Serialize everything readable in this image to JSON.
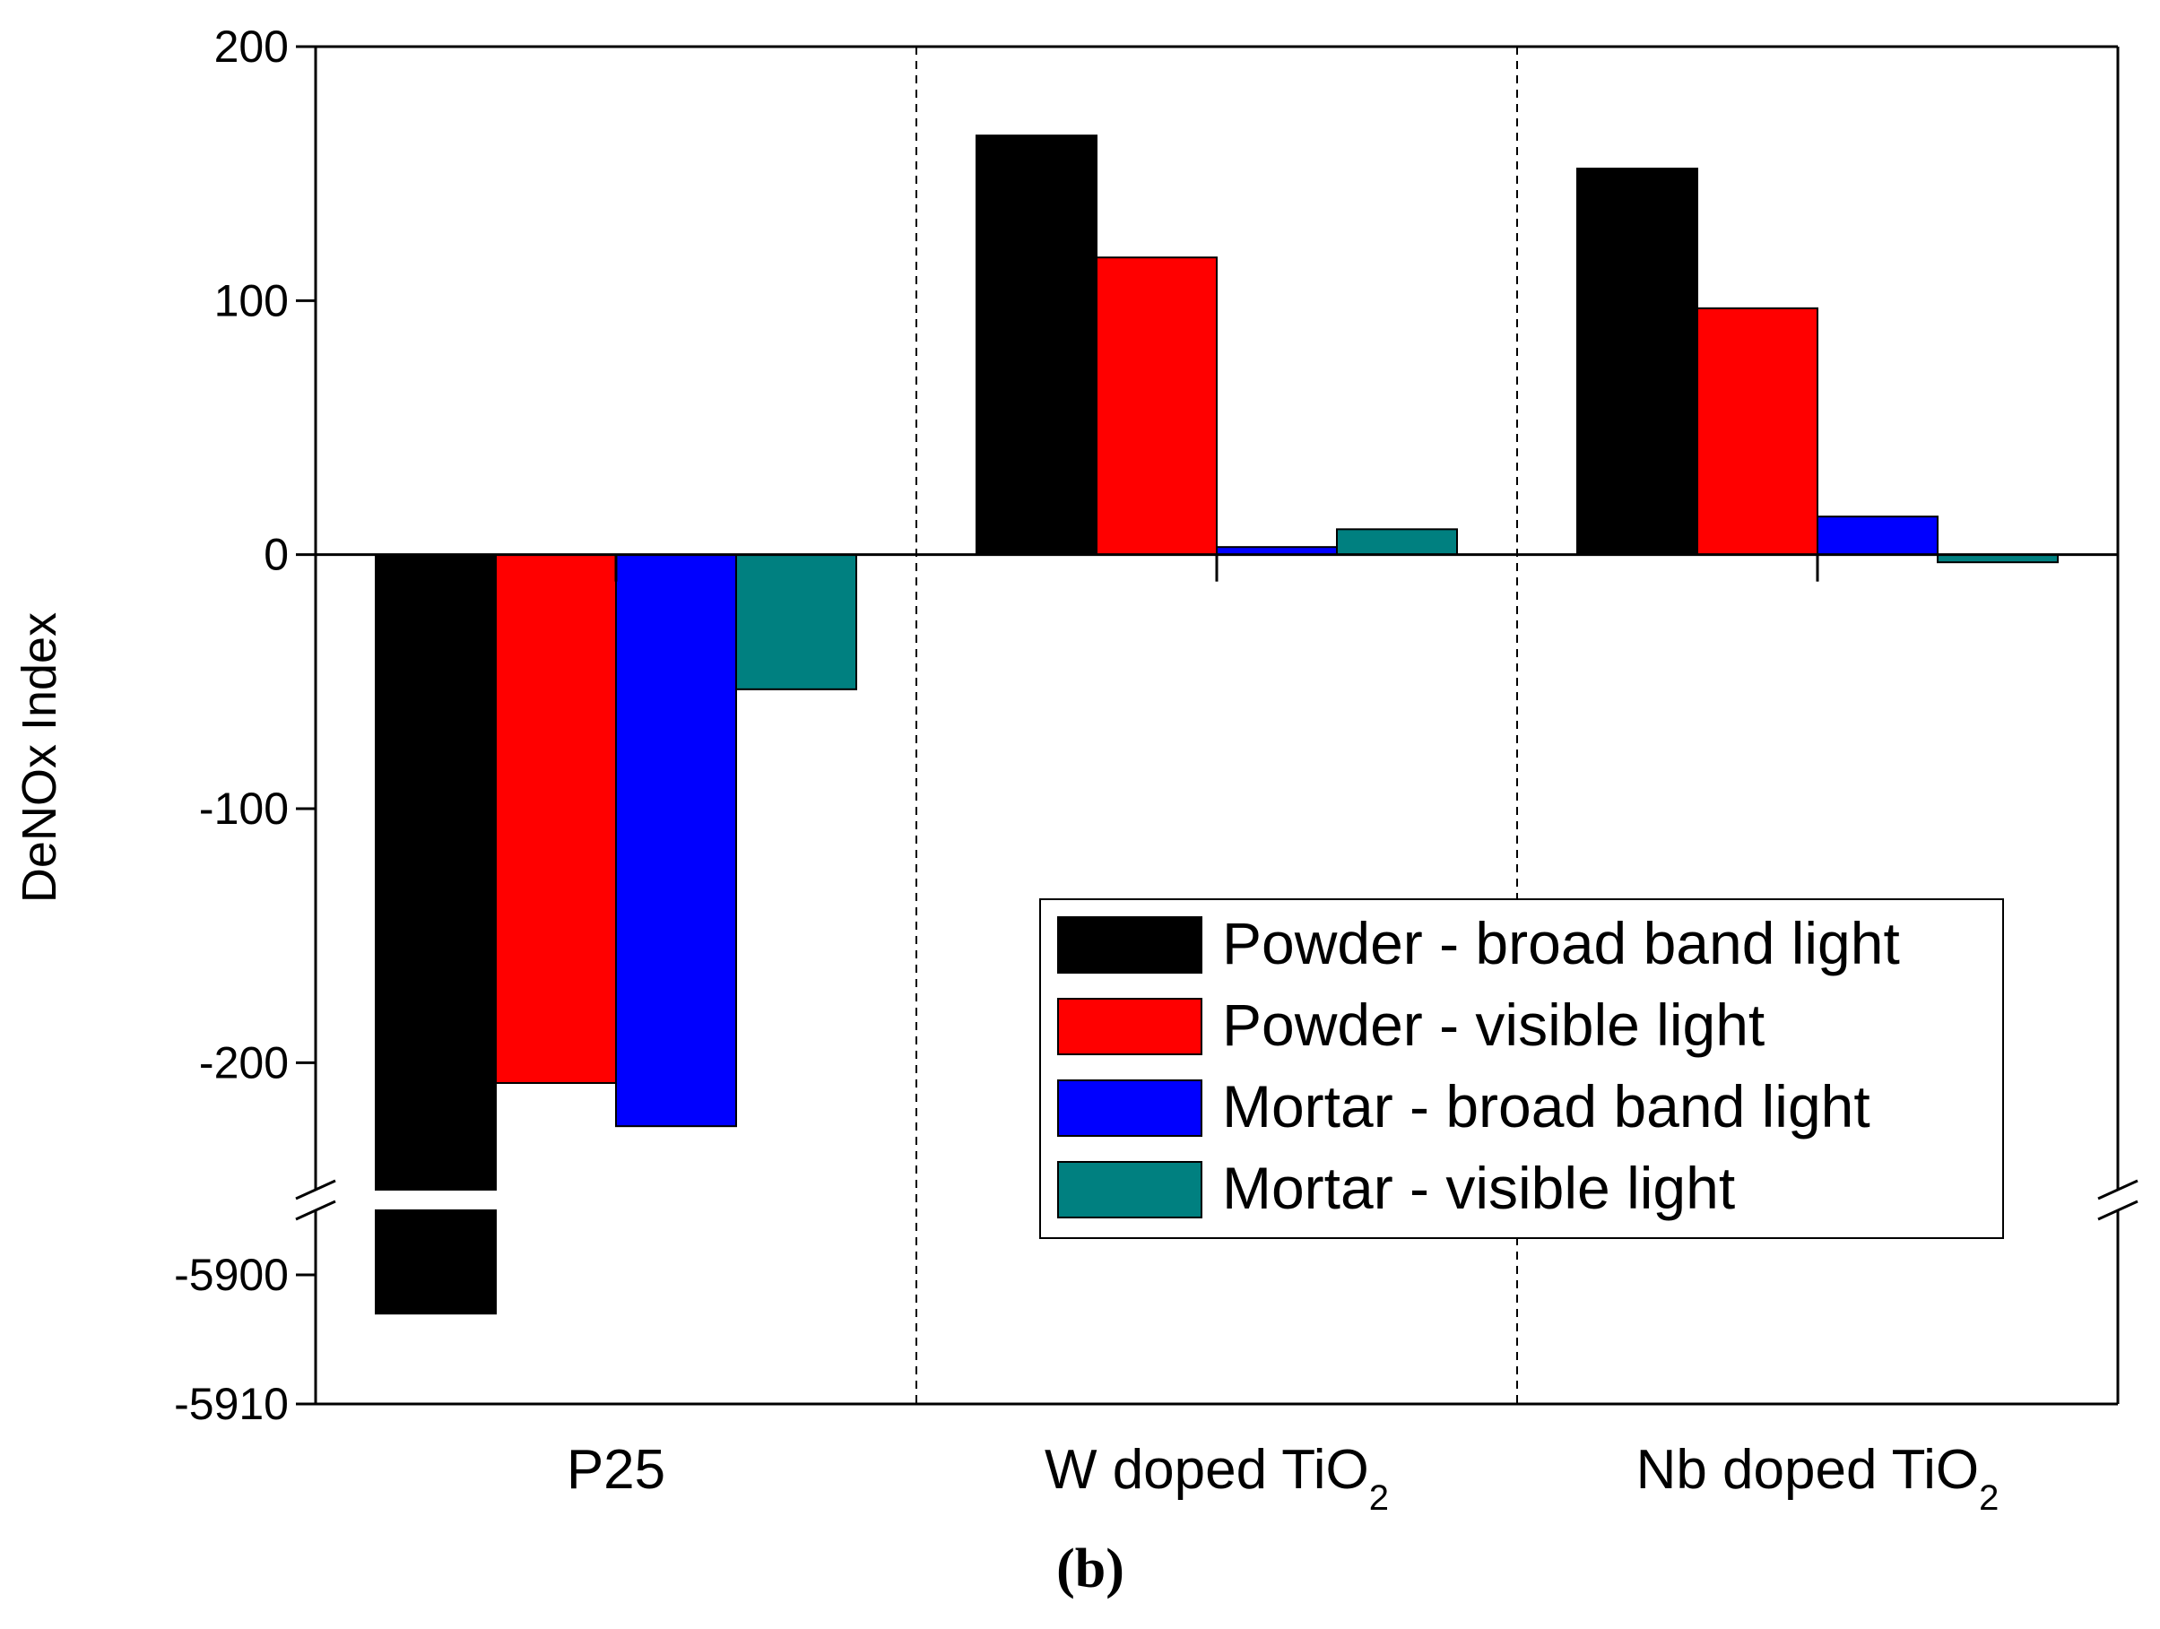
{
  "chart_data": {
    "type": "bar",
    "ylabel": "DeNOx Index",
    "xlabel": "",
    "caption": "(b)",
    "categories": [
      {
        "name": "P25",
        "label": "P25",
        "subscript": ""
      },
      {
        "name": "W doped TiO2",
        "label": "W doped TiO",
        "subscript": "2"
      },
      {
        "name": "Nb doped TiO2",
        "label": "Nb doped TiO",
        "subscript": "2"
      }
    ],
    "series": [
      {
        "name": "Powder - broad band light",
        "color": "#000000",
        "values": [
          -5903,
          165,
          152
        ]
      },
      {
        "name": "Powder - visible light",
        "color": "#ff0000",
        "values": [
          -208,
          117,
          97
        ]
      },
      {
        "name": "Mortar - broad band light",
        "color": "#0000ff",
        "values": [
          -225,
          3,
          15
        ]
      },
      {
        "name": "Mortar - visible light",
        "color": "#008080",
        "values": [
          -53,
          10,
          -3
        ]
      }
    ],
    "y_axis": {
      "broken": true,
      "upper_range": [
        -250,
        200
      ],
      "lower_range": [
        -5910,
        -5895
      ],
      "upper_ticks": [
        200,
        100,
        0,
        -100,
        -200
      ],
      "lower_ticks": [
        -5900,
        -5910
      ]
    },
    "legend_position": "lower-right",
    "category_separators": "dashed"
  }
}
